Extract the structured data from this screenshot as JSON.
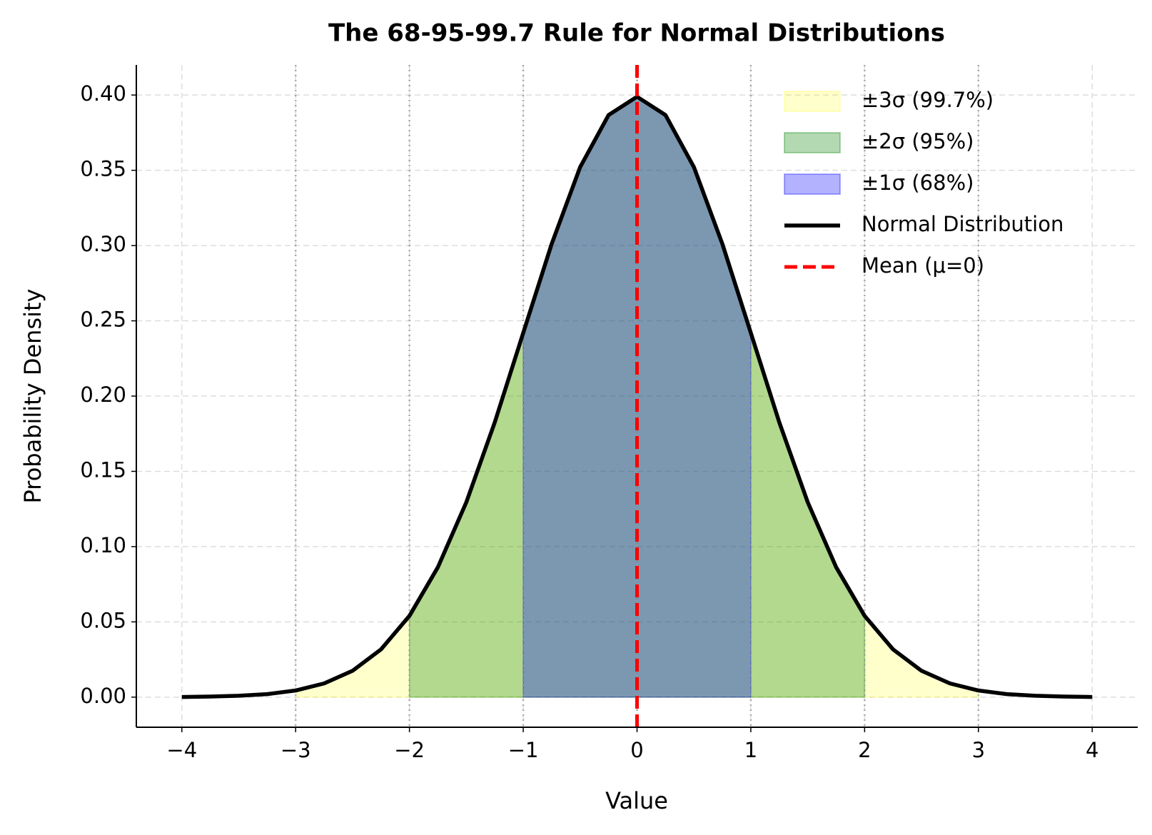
{
  "chart_data": {
    "type": "line",
    "title": "The 68-95-99.7 Rule for Normal Distributions",
    "xlabel": "Value",
    "ylabel": "Probability Density",
    "x": [
      -4,
      -3.75,
      -3.5,
      -3.25,
      -3,
      -2.75,
      -2.5,
      -2.25,
      -2,
      -1.75,
      -1.5,
      -1.25,
      -1,
      -0.75,
      -0.5,
      -0.25,
      0,
      0.25,
      0.5,
      0.75,
      1,
      1.25,
      1.5,
      1.75,
      2,
      2.25,
      2.5,
      2.75,
      3,
      3.25,
      3.5,
      3.75,
      4
    ],
    "series": [
      {
        "name": "Normal Distribution",
        "color": "#000000",
        "values": [
          0.0001,
          0.0004,
          0.0009,
          0.002,
          0.0044,
          0.0091,
          0.0175,
          0.0317,
          0.054,
          0.0863,
          0.1295,
          0.1826,
          0.242,
          0.3011,
          0.3521,
          0.3867,
          0.3989,
          0.3867,
          0.3521,
          0.3011,
          0.242,
          0.1826,
          0.1295,
          0.0863,
          0.054,
          0.0317,
          0.0175,
          0.0091,
          0.0044,
          0.002,
          0.0009,
          0.0004,
          0.0001
        ]
      }
    ],
    "bands": [
      {
        "name": "±3σ (99.7%)",
        "color": "#ffff00",
        "opacity": 0.2,
        "range": [
          -3,
          3
        ]
      },
      {
        "name": "±2σ (95%)",
        "color": "#008000",
        "opacity": 0.3,
        "range": [
          -2,
          2
        ]
      },
      {
        "name": "±1σ (68%)",
        "color": "#0000ff",
        "opacity": 0.3,
        "range": [
          -1,
          1
        ]
      }
    ],
    "mean_line": {
      "name": "Mean (μ=0)",
      "color": "#ff0000",
      "value": 0
    },
    "vlines": [
      -3,
      -2,
      -1,
      0,
      1,
      2,
      3
    ],
    "xlim": [
      -4.4,
      4.4
    ],
    "ylim": [
      -0.02,
      0.42
    ],
    "xticks": [
      {
        "value": -4,
        "label": "−4"
      },
      {
        "value": -3,
        "label": "−3"
      },
      {
        "value": -2,
        "label": "−2"
      },
      {
        "value": -1,
        "label": "−1"
      },
      0,
      1,
      2,
      3,
      4
    ],
    "yticks": [
      {
        "value": 0,
        "label": "0.00"
      },
      {
        "value": 0.05,
        "label": "0.05"
      },
      {
        "value": 0.1,
        "label": "0.10"
      },
      {
        "value": 0.15,
        "label": "0.15"
      },
      {
        "value": 0.2,
        "label": "0.20"
      },
      {
        "value": 0.25,
        "label": "0.25"
      },
      {
        "value": 0.3,
        "label": "0.30"
      },
      {
        "value": 0.35,
        "label": "0.35"
      },
      {
        "value": 0.4,
        "label": "0.40"
      }
    ],
    "grid": true,
    "legend": "upper right"
  }
}
